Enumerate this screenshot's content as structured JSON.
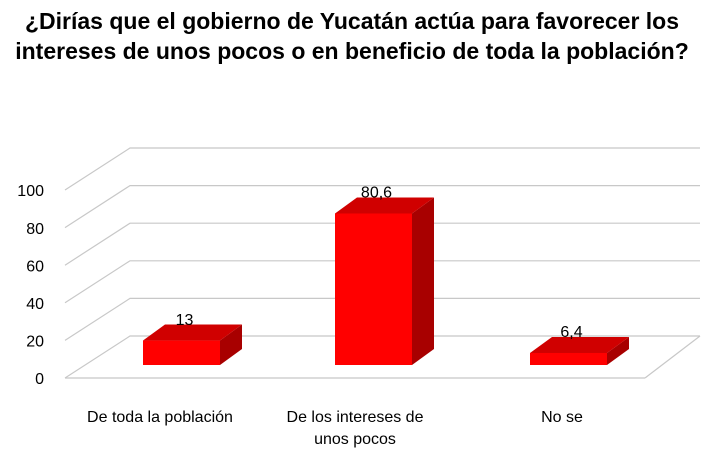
{
  "chart_data": {
    "type": "bar3d",
    "title": "¿Dirías que el gobierno de Yucatán actúa para favorecer los intereses de unos pocos o en beneficio de toda la población?",
    "categories": [
      "De toda la población",
      "De los intereses de unos pocos",
      "No se"
    ],
    "values": [
      13,
      80.6,
      6.4
    ],
    "value_labels": [
      "13",
      "80,6",
      "6,4"
    ],
    "color": "#ff0000",
    "ylim": [
      0,
      100
    ],
    "yticks": [
      0,
      20,
      40,
      60,
      80,
      100
    ],
    "grid": true
  }
}
